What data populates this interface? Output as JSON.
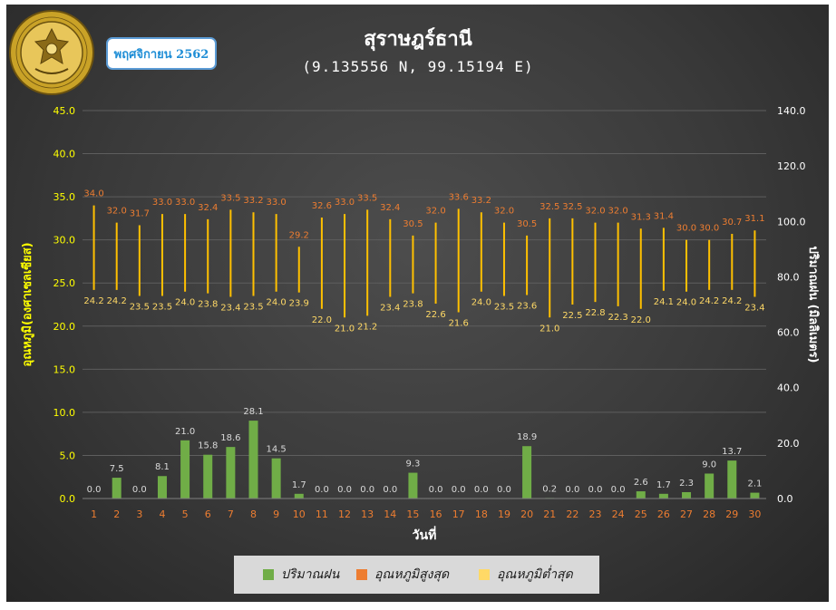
{
  "header": {
    "title": "สุราษฎร์ธานี",
    "subtitle": "(9.135556 N, 99.15194 E)",
    "period": "พฤศจิกายน 2562",
    "logo_text": "METEOROLOGICAL DEPARTMENT"
  },
  "colors": {
    "rain": "#70ad47",
    "tmax": "#ed7d31",
    "tmin": "#ffd966",
    "range_line": "#ffc000",
    "left_axis_text": "#ffff00",
    "right_axis_text": "#ffffff",
    "x_tick_text": "#ed7d31"
  },
  "chart_data": {
    "type": "bar",
    "title": "สุราษฎร์ธานี",
    "subtitle": "(9.135556 N, 99.15194 E)",
    "xlabel": "วันที่",
    "ylabel_left": "อุณหภูมิ(องศาเซลเซียส)",
    "ylabel_right": "ปริมาณฝน (มิลลิเมตร)",
    "ylim_left": [
      0,
      45
    ],
    "ylim_right": [
      0,
      140
    ],
    "yticks_left": [
      "0.0",
      "5.0",
      "10.0",
      "15.0",
      "20.0",
      "25.0",
      "30.0",
      "35.0",
      "40.0",
      "45.0"
    ],
    "yticks_right": [
      "0.0",
      "20.0",
      "40.0",
      "60.0",
      "80.0",
      "100.0",
      "120.0",
      "140.0"
    ],
    "grid": true,
    "legend_position": "bottom",
    "categories": [
      "1",
      "2",
      "3",
      "4",
      "5",
      "6",
      "7",
      "8",
      "9",
      "10",
      "11",
      "12",
      "13",
      "14",
      "15",
      "16",
      "17",
      "18",
      "19",
      "20",
      "21",
      "22",
      "23",
      "24",
      "25",
      "26",
      "27",
      "28",
      "29",
      "30"
    ],
    "series": [
      {
        "name": "ปริมาณฝน",
        "axis": "right",
        "kind": "bar",
        "values": [
          0.0,
          7.5,
          0.0,
          8.1,
          21.0,
          15.8,
          18.6,
          28.1,
          14.5,
          1.7,
          0.0,
          0.0,
          0.0,
          0.0,
          9.3,
          0.0,
          0.0,
          0.0,
          0.0,
          18.9,
          0.2,
          0.0,
          0.0,
          0.0,
          2.6,
          1.7,
          2.3,
          9.0,
          13.7,
          2.1
        ]
      },
      {
        "name": "อุณหภูมิสูงสุด",
        "axis": "left",
        "kind": "range-high",
        "values": [
          34.0,
          32.0,
          31.7,
          33.0,
          33.0,
          32.4,
          33.5,
          33.2,
          33.0,
          29.2,
          32.6,
          33.0,
          33.5,
          32.4,
          30.5,
          32.0,
          33.6,
          33.2,
          32.0,
          30.5,
          32.5,
          32.5,
          32.0,
          32.0,
          31.3,
          31.4,
          30.0,
          30.0,
          30.7,
          31.1
        ]
      },
      {
        "name": "อุณหภูมิต่ำสุด",
        "axis": "left",
        "kind": "range-low",
        "values": [
          24.2,
          24.2,
          23.5,
          23.5,
          24.0,
          23.8,
          23.4,
          23.5,
          24.0,
          23.9,
          22.0,
          21.0,
          21.2,
          23.4,
          23.8,
          22.6,
          21.6,
          24.0,
          23.5,
          23.6,
          21.0,
          22.5,
          22.8,
          22.3,
          22.0,
          24.1,
          24.0,
          24.2,
          24.2,
          23.4
        ]
      }
    ]
  }
}
